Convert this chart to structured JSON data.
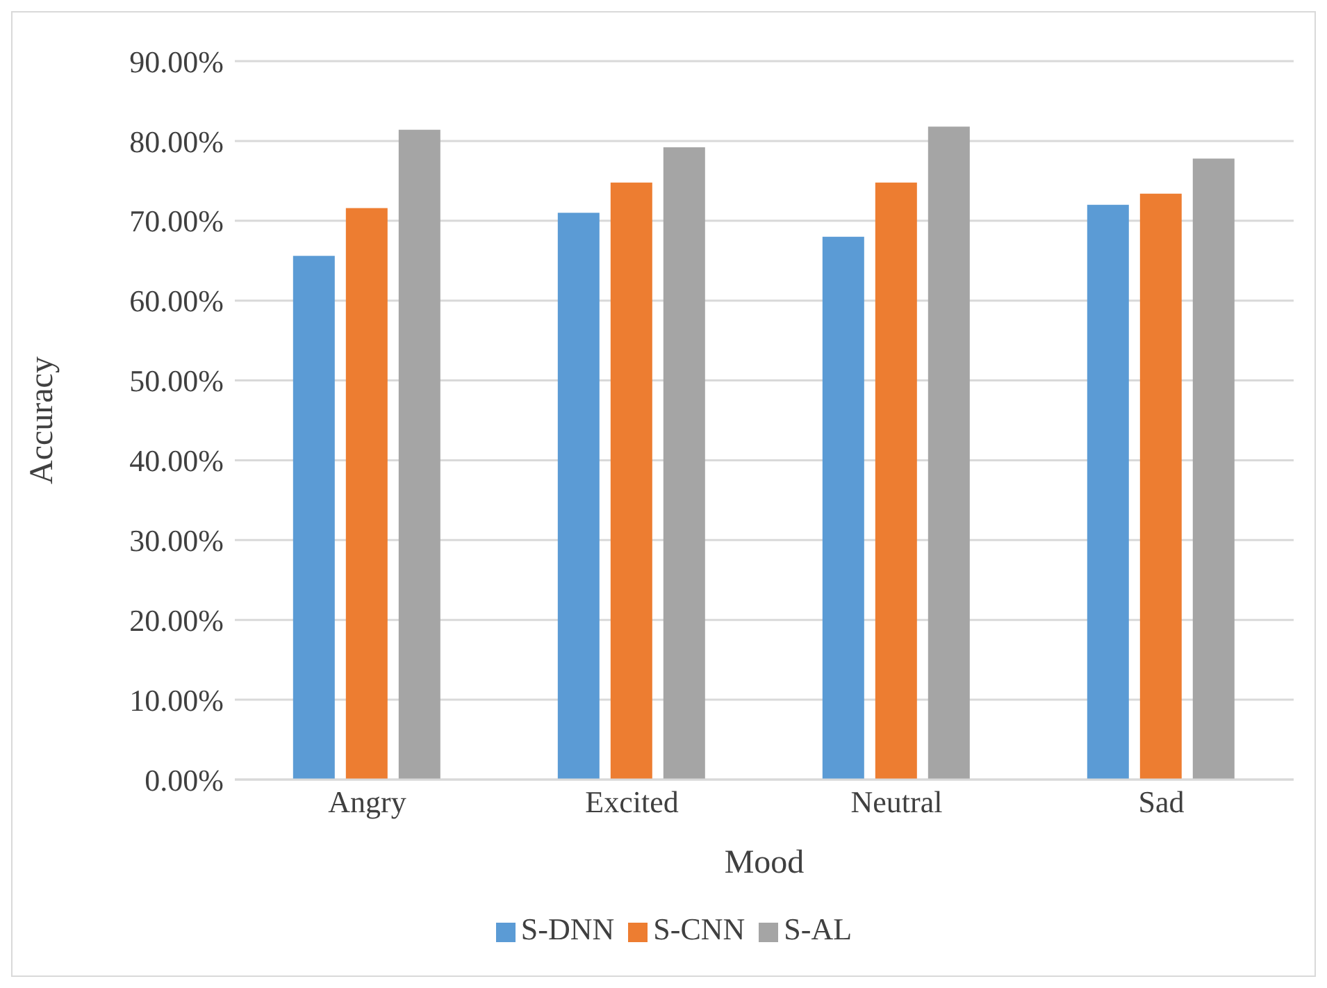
{
  "chart_data": {
    "type": "bar",
    "xlabel": "Mood",
    "ylabel": "Accuracy",
    "categories": [
      "Angry",
      "Excited",
      "Neutral",
      "Sad"
    ],
    "series": [
      {
        "name": "S-DNN",
        "color": "#5b9bd5",
        "values": [
          65.6,
          71.0,
          68.0,
          72.0
        ]
      },
      {
        "name": "S-CNN",
        "color": "#ed7d31",
        "values": [
          71.6,
          74.8,
          74.8,
          73.4
        ]
      },
      {
        "name": "S-AL",
        "color": "#a5a5a5",
        "values": [
          81.4,
          79.2,
          81.8,
          77.8
        ]
      }
    ],
    "ylim": [
      0,
      90
    ],
    "yticks": [
      {
        "value": 0,
        "label": "0.00%"
      },
      {
        "value": 10,
        "label": "10.00%"
      },
      {
        "value": 20,
        "label": "20.00%"
      },
      {
        "value": 30,
        "label": "30.00%"
      },
      {
        "value": 40,
        "label": "40.00%"
      },
      {
        "value": 50,
        "label": "50.00%"
      },
      {
        "value": 60,
        "label": "60.00%"
      },
      {
        "value": 70,
        "label": "70.00%"
      },
      {
        "value": 80,
        "label": "80.00%"
      },
      {
        "value": 90,
        "label": "90.00%"
      }
    ],
    "grid": "y",
    "legend": "bottom"
  }
}
